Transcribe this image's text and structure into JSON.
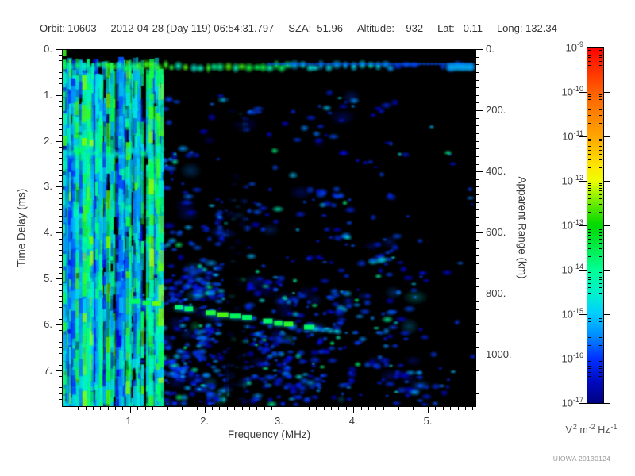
{
  "header": {
    "fields": [
      "Orbit: 10603",
      "2012-04-28 (Day 119) 06:54:31.797",
      "SZA:  51.96",
      "Altitude:    932",
      "Lat:   0.11",
      "Long: 132.34"
    ]
  },
  "watermark": "UIOWA 20130124",
  "chart_data": {
    "type": "heatmap",
    "description": "Radar sounder ionogram: received spectral density versus frequency and echo time delay",
    "plot_background": "#000000",
    "x_axis": {
      "label": "Frequency (MHz)",
      "range": [
        0.085,
        5.65
      ],
      "major_ticks": [
        1,
        2,
        3,
        4,
        5
      ],
      "tick_labels": [
        "1.",
        "2.",
        "3.",
        "4.",
        "5."
      ],
      "minor_tick_step": 0.1
    },
    "y_axis_left": {
      "label": "Time Delay (ms)",
      "range": [
        0,
        7.8
      ],
      "major_ticks": [
        0,
        1,
        2,
        3,
        4,
        5,
        6,
        7
      ],
      "tick_labels": [
        "0.",
        "1.",
        "2.",
        "3.",
        "4.",
        "5.",
        "6.",
        "7."
      ],
      "minor_tick_step": 0.125
    },
    "y_axis_right": {
      "label": "Apparent Range (km)",
      "km_per_ms": 150,
      "major_ticks": [
        0,
        200,
        400,
        600,
        800,
        1000
      ],
      "tick_labels": [
        "0.",
        "200.",
        "400.",
        "600.",
        "800.",
        "1000."
      ],
      "minor_tick_step": 25
    },
    "colorbar": {
      "scale": "log10",
      "tick_exponents": [
        -9,
        -10,
        -11,
        -12,
        -13,
        -14,
        -15,
        -16,
        -17
      ],
      "unit_parts": [
        [
          "V",
          "2"
        ],
        [
          "m",
          "-2"
        ],
        [
          "Hz",
          "-1"
        ]
      ],
      "gradient": [
        [
          0,
          "#ff0000"
        ],
        [
          0.03,
          "#ff1800"
        ],
        [
          0.125,
          "#ff5f00"
        ],
        [
          0.25,
          "#ffa500"
        ],
        [
          0.33,
          "#ffe400"
        ],
        [
          0.375,
          "#edff00"
        ],
        [
          0.45,
          "#52e800"
        ],
        [
          0.5,
          "#00d900"
        ],
        [
          0.625,
          "#00ff95"
        ],
        [
          0.7,
          "#00eed4"
        ],
        [
          0.75,
          "#00ccff"
        ],
        [
          0.81,
          "#008cff"
        ],
        [
          0.875,
          "#0030ff"
        ],
        [
          0.94,
          "#000ac0"
        ],
        [
          1,
          "#000080"
        ]
      ]
    },
    "render_seed": 20130124,
    "features": [
      {
        "name": "transmitter-pulse-band",
        "kind": "band",
        "t_ms": [
          0.22,
          0.5
        ],
        "f_mhz": [
          0.085,
          5.65
        ],
        "gap_f_mhz": [
          4.88,
          5.15
        ],
        "bright_block_f_mhz": [
          5.3,
          5.63
        ],
        "intensity": "bright green-cyan blobs fading to blue at high frequency"
      },
      {
        "name": "plasma-harmonic-stripes",
        "kind": "vertical-stripes",
        "f_mhz": [
          0.085,
          1.45
        ],
        "t_ms": [
          0.15,
          7.8
        ],
        "intensity": "dense cyan-green vertical striping"
      },
      {
        "name": "low-frequency-echo-band",
        "kind": "band",
        "t_ms": [
          2.1,
          2.4
        ],
        "f_mhz": [
          0.085,
          1.25
        ],
        "intensity": "green horizontal streak"
      },
      {
        "name": "surface-reflection-trace",
        "kind": "trace",
        "f_mhz": [
          1.0,
          3.35
        ],
        "t_ms": [
          5.45,
          5.95
        ],
        "tail_f_mhz": [
          3.35,
          3.85
        ],
        "tail_t_ms": [
          5.95,
          6.2
        ],
        "intensity": "bright blocky green trace drifting down toward higher frequency"
      },
      {
        "name": "diffuse-ionospheric-scatter",
        "kind": "speckle",
        "f_mhz": [
          0.085,
          5.65
        ],
        "t_ms": [
          0.45,
          7.8
        ],
        "density": "blue speckle, densest at low frequency and late delay, sparse above 4.8 MHz"
      },
      {
        "name": "dark-column",
        "kind": "gap",
        "f_mhz": [
          2.33,
          2.52
        ]
      }
    ]
  }
}
